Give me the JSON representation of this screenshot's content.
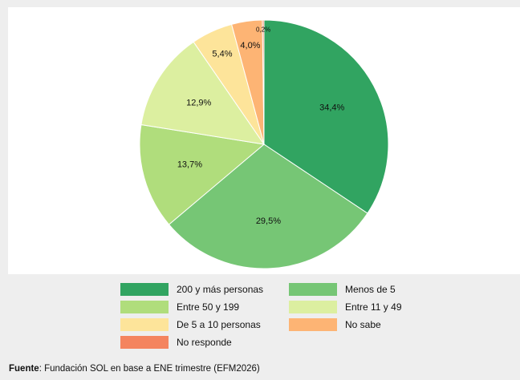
{
  "chart_data": {
    "type": "pie",
    "title": "",
    "categories": [
      "200 y más personas",
      "Menos de 5",
      "Entre 50 y 199",
      "Entre 11 y 49",
      "De 5 a 10 personas",
      "No sabe",
      "No responde"
    ],
    "values": [
      34.4,
      29.5,
      13.7,
      12.9,
      5.4,
      4.0,
      0.2
    ],
    "value_labels": [
      "34,4%",
      "29,5%",
      "13,7%",
      "12,9%",
      "5,4%",
      "4,0%",
      "0,2%"
    ],
    "colors": [
      "#31a461",
      "#76c675",
      "#b0dd7c",
      "#dcefa0",
      "#fde49a",
      "#fdb474",
      "#f4845f"
    ],
    "start": "top",
    "direction": "clockwise",
    "legend_position": "bottom"
  },
  "source": {
    "label": "Fuente",
    "text": ": Fundación SOL en base a ENE trimestre (EFM2026)"
  }
}
